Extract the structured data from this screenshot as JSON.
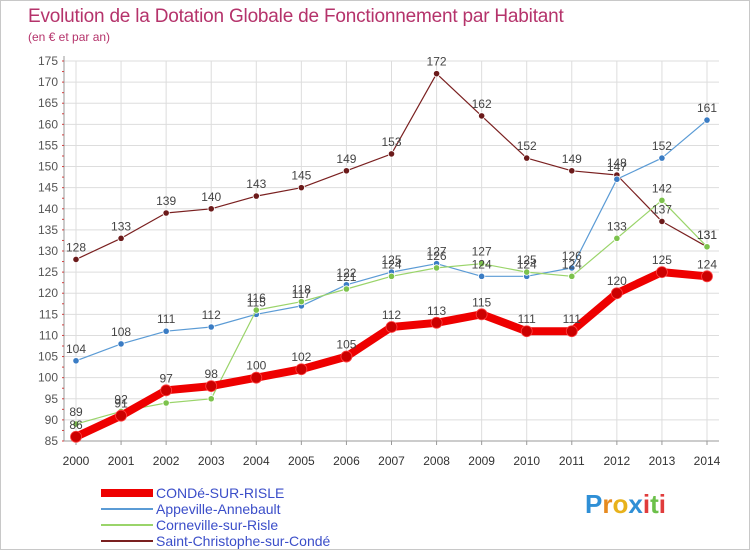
{
  "title": "Evolution de la Dotation Globale de Fonctionnement par Habitant",
  "subtitle": "(en € et par an)",
  "logo": {
    "letters": [
      "P",
      "r",
      "o",
      "x",
      "i",
      "t",
      "i"
    ],
    "colors": [
      "#2f8fd6",
      "#e68a1f",
      "#e8b21b",
      "#2f8fd6",
      "#e03c3c",
      "#6cc04a",
      "#e03c3c"
    ]
  },
  "colors": {
    "title": "#b5336b",
    "axis": "#777777",
    "grid": "#dddddd",
    "legend_text": "#3b4ec9"
  },
  "chart_data": {
    "type": "line",
    "title": "Evolution de la Dotation Globale de Fonctionnement par Habitant",
    "subtitle": "(en € et par an)",
    "xlabel": "",
    "ylabel": "",
    "x": [
      2000,
      2001,
      2002,
      2003,
      2004,
      2005,
      2006,
      2007,
      2008,
      2009,
      2010,
      2011,
      2012,
      2013,
      2014
    ],
    "ylim": [
      85,
      175
    ],
    "yticks": [
      85,
      90,
      95,
      100,
      105,
      110,
      115,
      120,
      125,
      130,
      135,
      140,
      145,
      150,
      155,
      160,
      165,
      170,
      175
    ],
    "grid": true,
    "legend_position": "bottom-left",
    "series": [
      {
        "name": "Saint-Christophe-sur-Condé",
        "color": "#7a2020",
        "width": 1.2,
        "dot": "#6b1a1a",
        "values": [
          128,
          133,
          139,
          140,
          143,
          145,
          149,
          153,
          172,
          162,
          152,
          149,
          148,
          137,
          131
        ],
        "labels": [
          "128",
          "133",
          "139",
          "140",
          "143",
          "145",
          "149",
          "153",
          "172",
          "162",
          "152",
          "149",
          "148",
          "137",
          "131"
        ]
      },
      {
        "name": "Appeville-Annebault",
        "color": "#5b9bd5",
        "width": 1.2,
        "dot": "#3a7cc4",
        "values": [
          104,
          108,
          111,
          112,
          115,
          117,
          122,
          125,
          127,
          124,
          124,
          126,
          147,
          152,
          161
        ],
        "labels": [
          "104",
          "108",
          "111",
          "112",
          "115",
          "117",
          "122",
          "125",
          "127",
          "124",
          "124",
          "126",
          "147",
          "152",
          "161"
        ]
      },
      {
        "name": "Corneville-sur-Risle",
        "color": "#9ad46a",
        "width": 1.2,
        "dot": "#7cc24c",
        "values": [
          89,
          92,
          94,
          95,
          116,
          118,
          121,
          124,
          126,
          127,
          125,
          124,
          133,
          142,
          131
        ],
        "labels": [
          "89",
          "92",
          "",
          "",
          "116",
          "118",
          "121",
          "124",
          "126",
          "127",
          "125",
          "124",
          "133",
          "142",
          "131"
        ]
      },
      {
        "name": "CONDé-SUR-RISLE",
        "color": "#ee0000",
        "width": 8,
        "dot": "#cc0000",
        "values": [
          86,
          91,
          97,
          98,
          100,
          102,
          105,
          112,
          113,
          115,
          111,
          111,
          120,
          125,
          124
        ],
        "labels": [
          "86",
          "91",
          "97",
          "98",
          "100",
          "102",
          "105",
          "112",
          "113",
          "115",
          "111",
          "111",
          "120",
          "125",
          "124"
        ]
      }
    ],
    "legend": [
      {
        "name": "CONDé-SUR-RISLE",
        "color": "#ee0000",
        "thickness": 8
      },
      {
        "name": "Appeville-Annebault",
        "color": "#5b9bd5",
        "thickness": 2
      },
      {
        "name": "Corneville-sur-Risle",
        "color": "#9ad46a",
        "thickness": 2
      },
      {
        "name": "Saint-Christophe-sur-Condé",
        "color": "#7a2020",
        "thickness": 2
      }
    ]
  }
}
